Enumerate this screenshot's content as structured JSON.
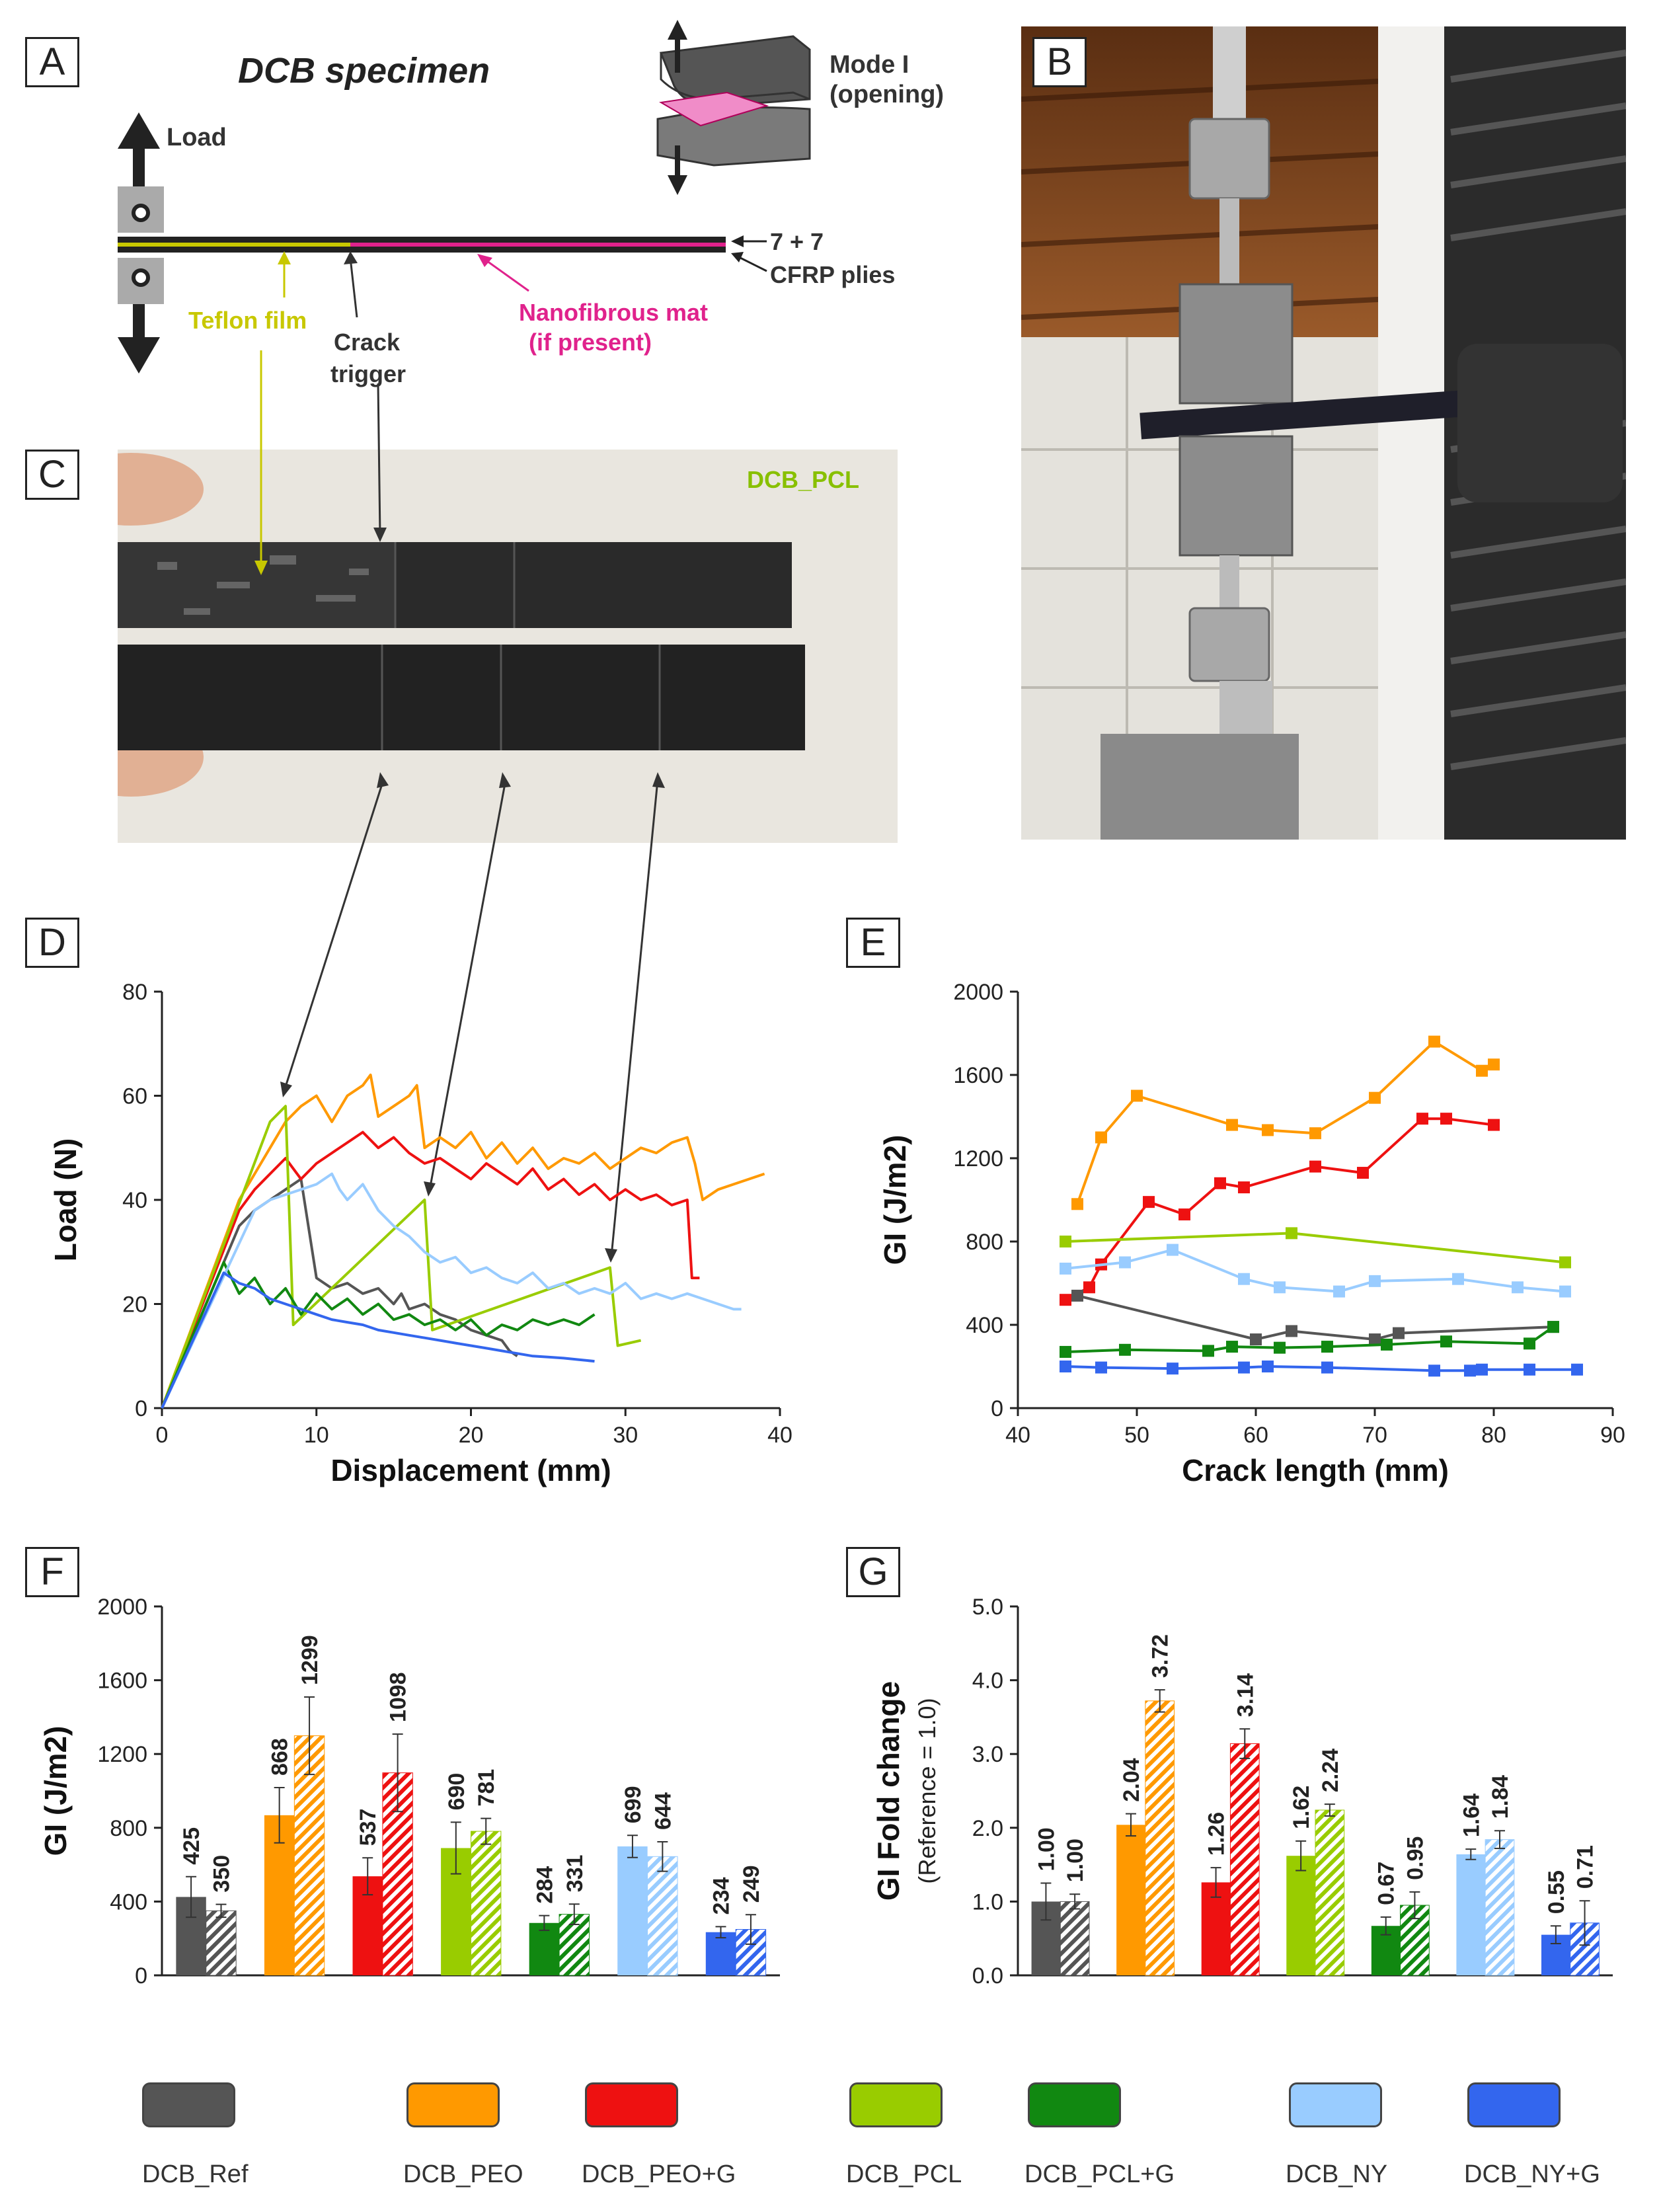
{
  "panels": {
    "a": "A",
    "b": "B",
    "c": "C",
    "d": "D",
    "e": "E",
    "f": "F",
    "g": "G"
  },
  "schematic": {
    "title": "DCB specimen",
    "mode_label_1": "Mode I",
    "mode_label_2": "(opening)",
    "load": "Load",
    "plies_1": "7 + 7",
    "plies_2": "CFRP plies",
    "teflon": "Teflon film",
    "crack_1": "Crack",
    "crack_2": "trigger",
    "nano_1": "Nanofibrous mat",
    "nano_2": "(if present)"
  },
  "photo_c": {
    "label": "DCB_PCL"
  },
  "colors": {
    "ref": "#555555",
    "peo": "#ff9900",
    "peog": "#ee1111",
    "pcl": "#99cc00",
    "pclg": "#118811",
    "ny": "#99ccff",
    "nyg": "#3366ee",
    "teflon": "#c8c800",
    "nano": "#e0228c"
  },
  "legend": [
    {
      "name": "DCB_Ref",
      "color": "#555555"
    },
    {
      "name": "DCB_PEO",
      "color": "#ff9900"
    },
    {
      "name": "DCB_PEO+G",
      "color": "#ee1111"
    },
    {
      "name": "DCB_PCL",
      "color": "#99cc00"
    },
    {
      "name": "DCB_PCL+G",
      "color": "#118811"
    },
    {
      "name": "DCB_NY",
      "color": "#99ccff"
    },
    {
      "name": "DCB_NY+G",
      "color": "#3366ee"
    }
  ],
  "chart_data": [
    {
      "id": "D",
      "type": "line",
      "xlabel": "Displacement (mm)",
      "ylabel": "Load (N)",
      "xlim": [
        0,
        40
      ],
      "ylim": [
        0,
        80
      ],
      "xticks": [
        "0",
        "10",
        "20",
        "30",
        "40"
      ],
      "yticks": [
        "0",
        "20",
        "40",
        "60",
        "80"
      ],
      "series": [
        {
          "name": "DCB_Ref",
          "color": "#555555",
          "x": [
            0,
            5,
            6,
            7,
            8,
            9,
            10,
            11,
            12,
            13,
            14,
            15,
            15.5,
            16,
            17,
            18,
            19,
            20,
            21,
            22,
            22.5,
            23
          ],
          "y": [
            0,
            35,
            38,
            40,
            42,
            44,
            25,
            23,
            24,
            22,
            23,
            20,
            22,
            19,
            20,
            18,
            17,
            15,
            14,
            13,
            11,
            10
          ]
        },
        {
          "name": "DCB_PEO",
          "color": "#ff9900",
          "x": [
            0,
            5,
            6,
            7,
            8,
            9,
            10,
            11,
            12,
            13,
            13.5,
            14,
            15,
            16,
            16.5,
            17,
            18,
            19,
            20,
            21,
            22,
            23,
            24,
            25,
            26,
            27,
            28,
            29,
            30,
            31,
            32,
            33,
            34,
            34.5,
            35,
            36,
            37,
            38,
            39
          ],
          "y": [
            0,
            40,
            45,
            50,
            55,
            58,
            60,
            55,
            60,
            62,
            64,
            56,
            58,
            60,
            62,
            50,
            52,
            50,
            53,
            48,
            51,
            47,
            50,
            46,
            48,
            47,
            49,
            46,
            48,
            50,
            49,
            51,
            52,
            47,
            40,
            42,
            43,
            44,
            45
          ]
        },
        {
          "name": "DCB_PEO+G",
          "color": "#ee1111",
          "x": [
            0,
            5,
            6,
            7,
            8,
            9,
            10,
            11,
            12,
            13,
            14,
            15,
            16,
            17,
            18,
            19,
            20,
            21,
            22,
            23,
            24,
            25,
            26,
            27,
            28,
            29,
            30,
            31,
            32,
            33,
            34,
            34.3,
            34.8
          ],
          "y": [
            0,
            38,
            42,
            45,
            48,
            44,
            47,
            49,
            51,
            53,
            50,
            52,
            49,
            47,
            48,
            46,
            44,
            47,
            45,
            43,
            46,
            42,
            44,
            41,
            43,
            40,
            42,
            40,
            41,
            39,
            40,
            25,
            25
          ]
        },
        {
          "name": "DCB_PCL",
          "color": "#99cc00",
          "x": [
            0,
            7,
            8,
            8.5,
            17,
            17.5,
            29,
            29.5,
            31
          ],
          "y": [
            0,
            55,
            58,
            16,
            40,
            15,
            27,
            12,
            13
          ]
        },
        {
          "name": "DCB_PCL+G",
          "color": "#118811",
          "x": [
            0,
            4,
            5,
            6,
            7,
            8,
            9,
            10,
            11,
            12,
            13,
            14,
            15,
            16,
            17,
            18,
            19,
            20,
            21,
            22,
            23,
            24,
            25,
            26,
            27,
            28
          ],
          "y": [
            0,
            28,
            22,
            25,
            20,
            23,
            18,
            22,
            19,
            21,
            18,
            20,
            17,
            18,
            16,
            17,
            15,
            17,
            14,
            16,
            15,
            17,
            16,
            17,
            16,
            18
          ]
        },
        {
          "name": "DCB_NY",
          "color": "#99ccff",
          "x": [
            0,
            6,
            7,
            8,
            9,
            10,
            11,
            11.5,
            12,
            13,
            14,
            15,
            16,
            17,
            18,
            19,
            20,
            21,
            22,
            23,
            24,
            25,
            26,
            27,
            28,
            29,
            30,
            31,
            32,
            33,
            34,
            35,
            36,
            37,
            37.5
          ],
          "y": [
            0,
            38,
            40,
            41,
            42,
            43,
            45,
            42,
            40,
            43,
            38,
            35,
            33,
            30,
            28,
            29,
            26,
            27,
            25,
            24,
            26,
            23,
            24,
            22,
            23,
            22,
            24,
            21,
            22,
            21,
            22,
            21,
            20,
            19,
            19
          ]
        },
        {
          "name": "DCB_NY+G",
          "color": "#3366ee",
          "x": [
            0,
            4,
            5,
            6,
            7,
            8,
            9,
            10,
            11,
            12,
            13,
            14,
            15,
            16,
            17,
            18,
            19,
            20,
            21,
            22,
            23,
            24,
            25,
            26,
            27,
            28
          ],
          "y": [
            0,
            26,
            24,
            23,
            21,
            20,
            19,
            18,
            17,
            16.5,
            16,
            15,
            14.5,
            14,
            13.5,
            13,
            12.5,
            12,
            11.5,
            11,
            10.5,
            10,
            9.8,
            9.6,
            9.3,
            9
          ]
        }
      ]
    },
    {
      "id": "E",
      "type": "line",
      "xlabel": "Crack length (mm)",
      "ylabel": "GI (J/m2)",
      "xlim": [
        40,
        90
      ],
      "ylim": [
        0,
        2000
      ],
      "xticks": [
        "40",
        "50",
        "60",
        "70",
        "80",
        "90"
      ],
      "yticks": [
        "0",
        "400",
        "800",
        "1200",
        "1600",
        "2000"
      ],
      "series": [
        {
          "name": "DCB_PEO",
          "color": "#ff9900",
          "x": [
            45,
            47,
            50,
            58,
            61,
            65,
            70,
            75,
            79,
            80
          ],
          "y": [
            980,
            1300,
            1500,
            1360,
            1335,
            1320,
            1490,
            1760,
            1620,
            1650
          ]
        },
        {
          "name": "DCB_PEO+G",
          "color": "#ee1111",
          "x": [
            44,
            46,
            47,
            51,
            54,
            57,
            59,
            65,
            69,
            74,
            76,
            80
          ],
          "y": [
            520,
            580,
            690,
            990,
            930,
            1080,
            1060,
            1160,
            1130,
            1390,
            1390,
            1360
          ]
        },
        {
          "name": "DCB_PCL",
          "color": "#99cc00",
          "x": [
            44,
            63,
            86
          ],
          "y": [
            800,
            840,
            700
          ]
        },
        {
          "name": "DCB_NY",
          "color": "#99ccff",
          "x": [
            44,
            49,
            53,
            59,
            62,
            67,
            70,
            77,
            82,
            86
          ],
          "y": [
            670,
            700,
            760,
            620,
            580,
            560,
            610,
            620,
            580,
            560
          ]
        },
        {
          "name": "DCB_Ref",
          "color": "#555555",
          "x": [
            45,
            60,
            63,
            70,
            72,
            85
          ],
          "y": [
            540,
            330,
            370,
            330,
            360,
            390
          ]
        },
        {
          "name": "DCB_PCL+G",
          "color": "#118811",
          "x": [
            44,
            49,
            56,
            58,
            62,
            66,
            71,
            76,
            83,
            85
          ],
          "y": [
            270,
            280,
            275,
            295,
            290,
            295,
            305,
            320,
            310,
            390
          ]
        },
        {
          "name": "DCB_NY+G",
          "color": "#3366ee",
          "x": [
            44,
            47,
            53,
            59,
            61,
            66,
            75,
            78,
            79,
            83,
            87
          ],
          "y": [
            200,
            195,
            190,
            195,
            200,
            195,
            180,
            180,
            185,
            185,
            185
          ]
        }
      ]
    },
    {
      "id": "F",
      "type": "bar",
      "ylabel": "GI (J/m2)",
      "ylim": [
        0,
        2000
      ],
      "yticks": [
        "0",
        "400",
        "800",
        "1200",
        "1600",
        "2000"
      ],
      "groups": [
        {
          "name": "DCB_Ref",
          "color": "#555555",
          "values": [
            425,
            350
          ],
          "labels": [
            "425",
            "350"
          ],
          "err": [
            110,
            35
          ]
        },
        {
          "name": "DCB_PEO",
          "color": "#ff9900",
          "values": [
            868,
            1299
          ],
          "labels": [
            "868",
            "1299"
          ],
          "err": [
            150,
            210
          ]
        },
        {
          "name": "DCB_PEO+G",
          "color": "#ee1111",
          "values": [
            537,
            1098
          ],
          "labels": [
            "537",
            "1098"
          ],
          "err": [
            100,
            210
          ]
        },
        {
          "name": "DCB_PCL",
          "color": "#99cc00",
          "values": [
            690,
            781
          ],
          "labels": [
            "690",
            "781"
          ],
          "err": [
            140,
            70
          ]
        },
        {
          "name": "DCB_PCL+G",
          "color": "#118811",
          "values": [
            284,
            331
          ],
          "labels": [
            "284",
            "331"
          ],
          "err": [
            40,
            55
          ]
        },
        {
          "name": "DCB_NY",
          "color": "#99ccff",
          "values": [
            699,
            644
          ],
          "labels": [
            "699",
            "644"
          ],
          "err": [
            60,
            80
          ]
        },
        {
          "name": "DCB_NY+G",
          "color": "#3366ee",
          "values": [
            234,
            249
          ],
          "labels": [
            "234",
            "249"
          ],
          "err": [
            30,
            80
          ]
        }
      ]
    },
    {
      "id": "G",
      "type": "bar",
      "ylabel": "GI Fold change",
      "ysublabel": "(Reference = 1.0)",
      "ylim": [
        0,
        5
      ],
      "yticks": [
        "0.0",
        "1.0",
        "2.0",
        "3.0",
        "4.0",
        "5.0"
      ],
      "groups": [
        {
          "name": "DCB_Ref",
          "color": "#555555",
          "values": [
            1.0,
            1.0
          ],
          "labels": [
            "1.00",
            "1.00"
          ],
          "err": [
            0.25,
            0.1
          ]
        },
        {
          "name": "DCB_PEO",
          "color": "#ff9900",
          "values": [
            2.04,
            3.72
          ],
          "labels": [
            "2.04",
            "3.72"
          ],
          "err": [
            0.15,
            0.15
          ]
        },
        {
          "name": "DCB_PEO+G",
          "color": "#ee1111",
          "values": [
            1.26,
            3.14
          ],
          "labels": [
            "1.26",
            "3.14"
          ],
          "err": [
            0.2,
            0.2
          ]
        },
        {
          "name": "DCB_PCL",
          "color": "#99cc00",
          "values": [
            1.62,
            2.24
          ],
          "labels": [
            "1.62",
            "2.24"
          ],
          "err": [
            0.2,
            0.08
          ]
        },
        {
          "name": "DCB_PCL+G",
          "color": "#118811",
          "values": [
            0.67,
            0.95
          ],
          "labels": [
            "0.67",
            "0.95"
          ],
          "err": [
            0.12,
            0.18
          ]
        },
        {
          "name": "DCB_NY",
          "color": "#99ccff",
          "values": [
            1.64,
            1.84
          ],
          "labels": [
            "1.64",
            "1.84"
          ],
          "err": [
            0.07,
            0.12
          ]
        },
        {
          "name": "DCB_NY+G",
          "color": "#3366ee",
          "values": [
            0.55,
            0.71
          ],
          "labels": [
            "0.55",
            "0.71"
          ],
          "err": [
            0.12,
            0.3
          ]
        }
      ]
    }
  ]
}
